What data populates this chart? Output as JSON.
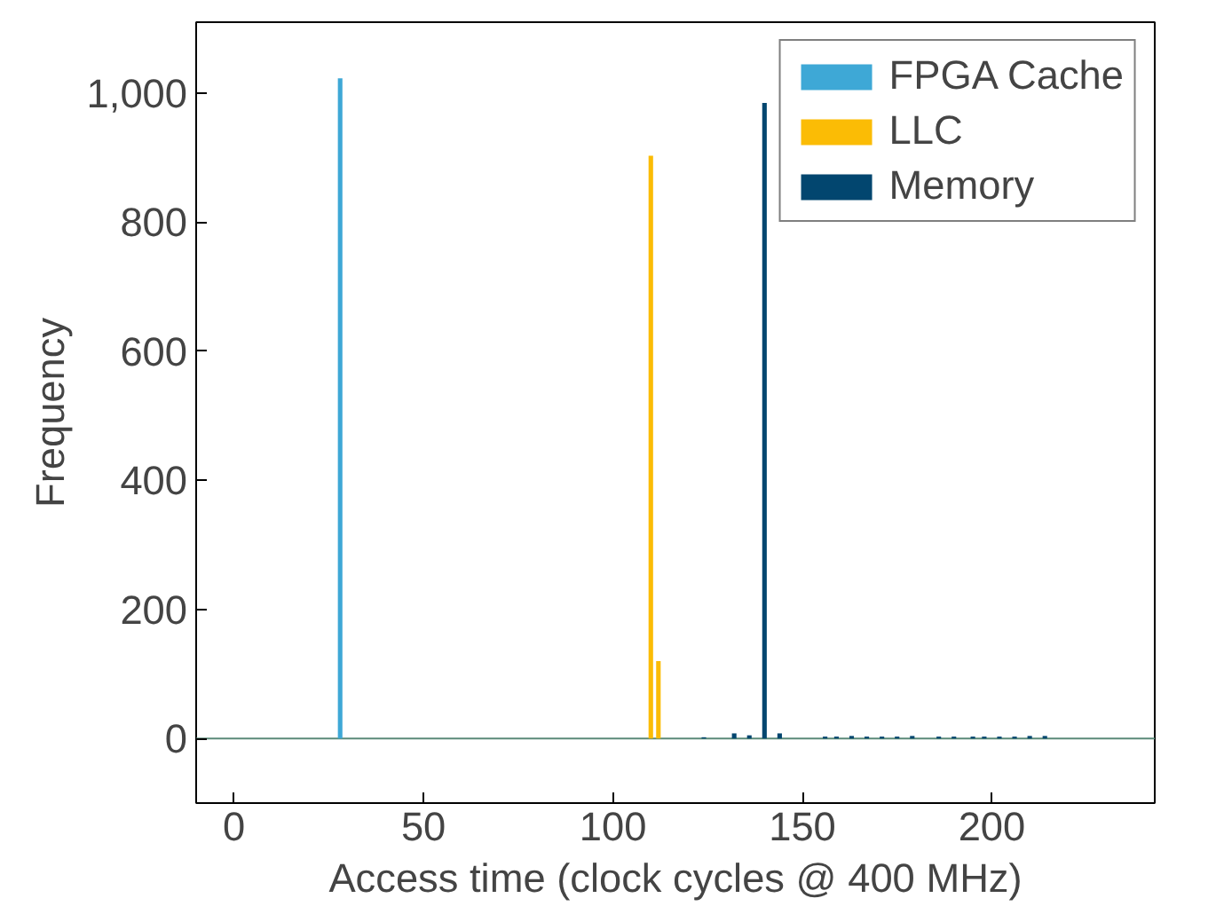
{
  "chart_data": {
    "type": "bar",
    "xlabel": "Access time (clock cycles @ 400 MHz)",
    "ylabel": "Frequency",
    "xlim": [
      -10,
      243
    ],
    "ylim": [
      -100,
      1110
    ],
    "xticks": [
      {
        "value": 0,
        "label": "0"
      },
      {
        "value": 50,
        "label": "50"
      },
      {
        "value": 100,
        "label": "100"
      },
      {
        "value": 150,
        "label": "150"
      },
      {
        "value": 200,
        "label": "200"
      }
    ],
    "yticks": [
      {
        "value": 0,
        "label": "0"
      },
      {
        "value": 200,
        "label": "200"
      },
      {
        "value": 400,
        "label": "400"
      },
      {
        "value": 600,
        "label": "600"
      },
      {
        "value": 800,
        "label": "800"
      },
      {
        "value": 1000,
        "label": "1,000"
      }
    ],
    "series": [
      {
        "name": "FPGA Cache",
        "color": "#3ea8d6",
        "x": [
          28
        ],
        "values": [
          1023
        ]
      },
      {
        "name": "LLC",
        "color": "#fbbc05",
        "x": [
          110,
          112
        ],
        "values": [
          903,
          120
        ]
      },
      {
        "name": "Memory",
        "color": "#02466f",
        "x": [
          124,
          132,
          136,
          140,
          144,
          156,
          159,
          163,
          167,
          171,
          175,
          179,
          186,
          190,
          195,
          198,
          202,
          206,
          210,
          214
        ],
        "values": [
          2,
          8,
          5,
          985,
          8,
          3,
          3,
          4,
          3,
          3,
          3,
          4,
          3,
          3,
          3,
          3,
          3,
          3,
          4,
          4
        ]
      }
    ],
    "ref_lines": [
      {
        "axis": "y",
        "value": 0,
        "label": null,
        "color": "#5b8a78"
      }
    ],
    "legend": "top right",
    "grid": false
  }
}
